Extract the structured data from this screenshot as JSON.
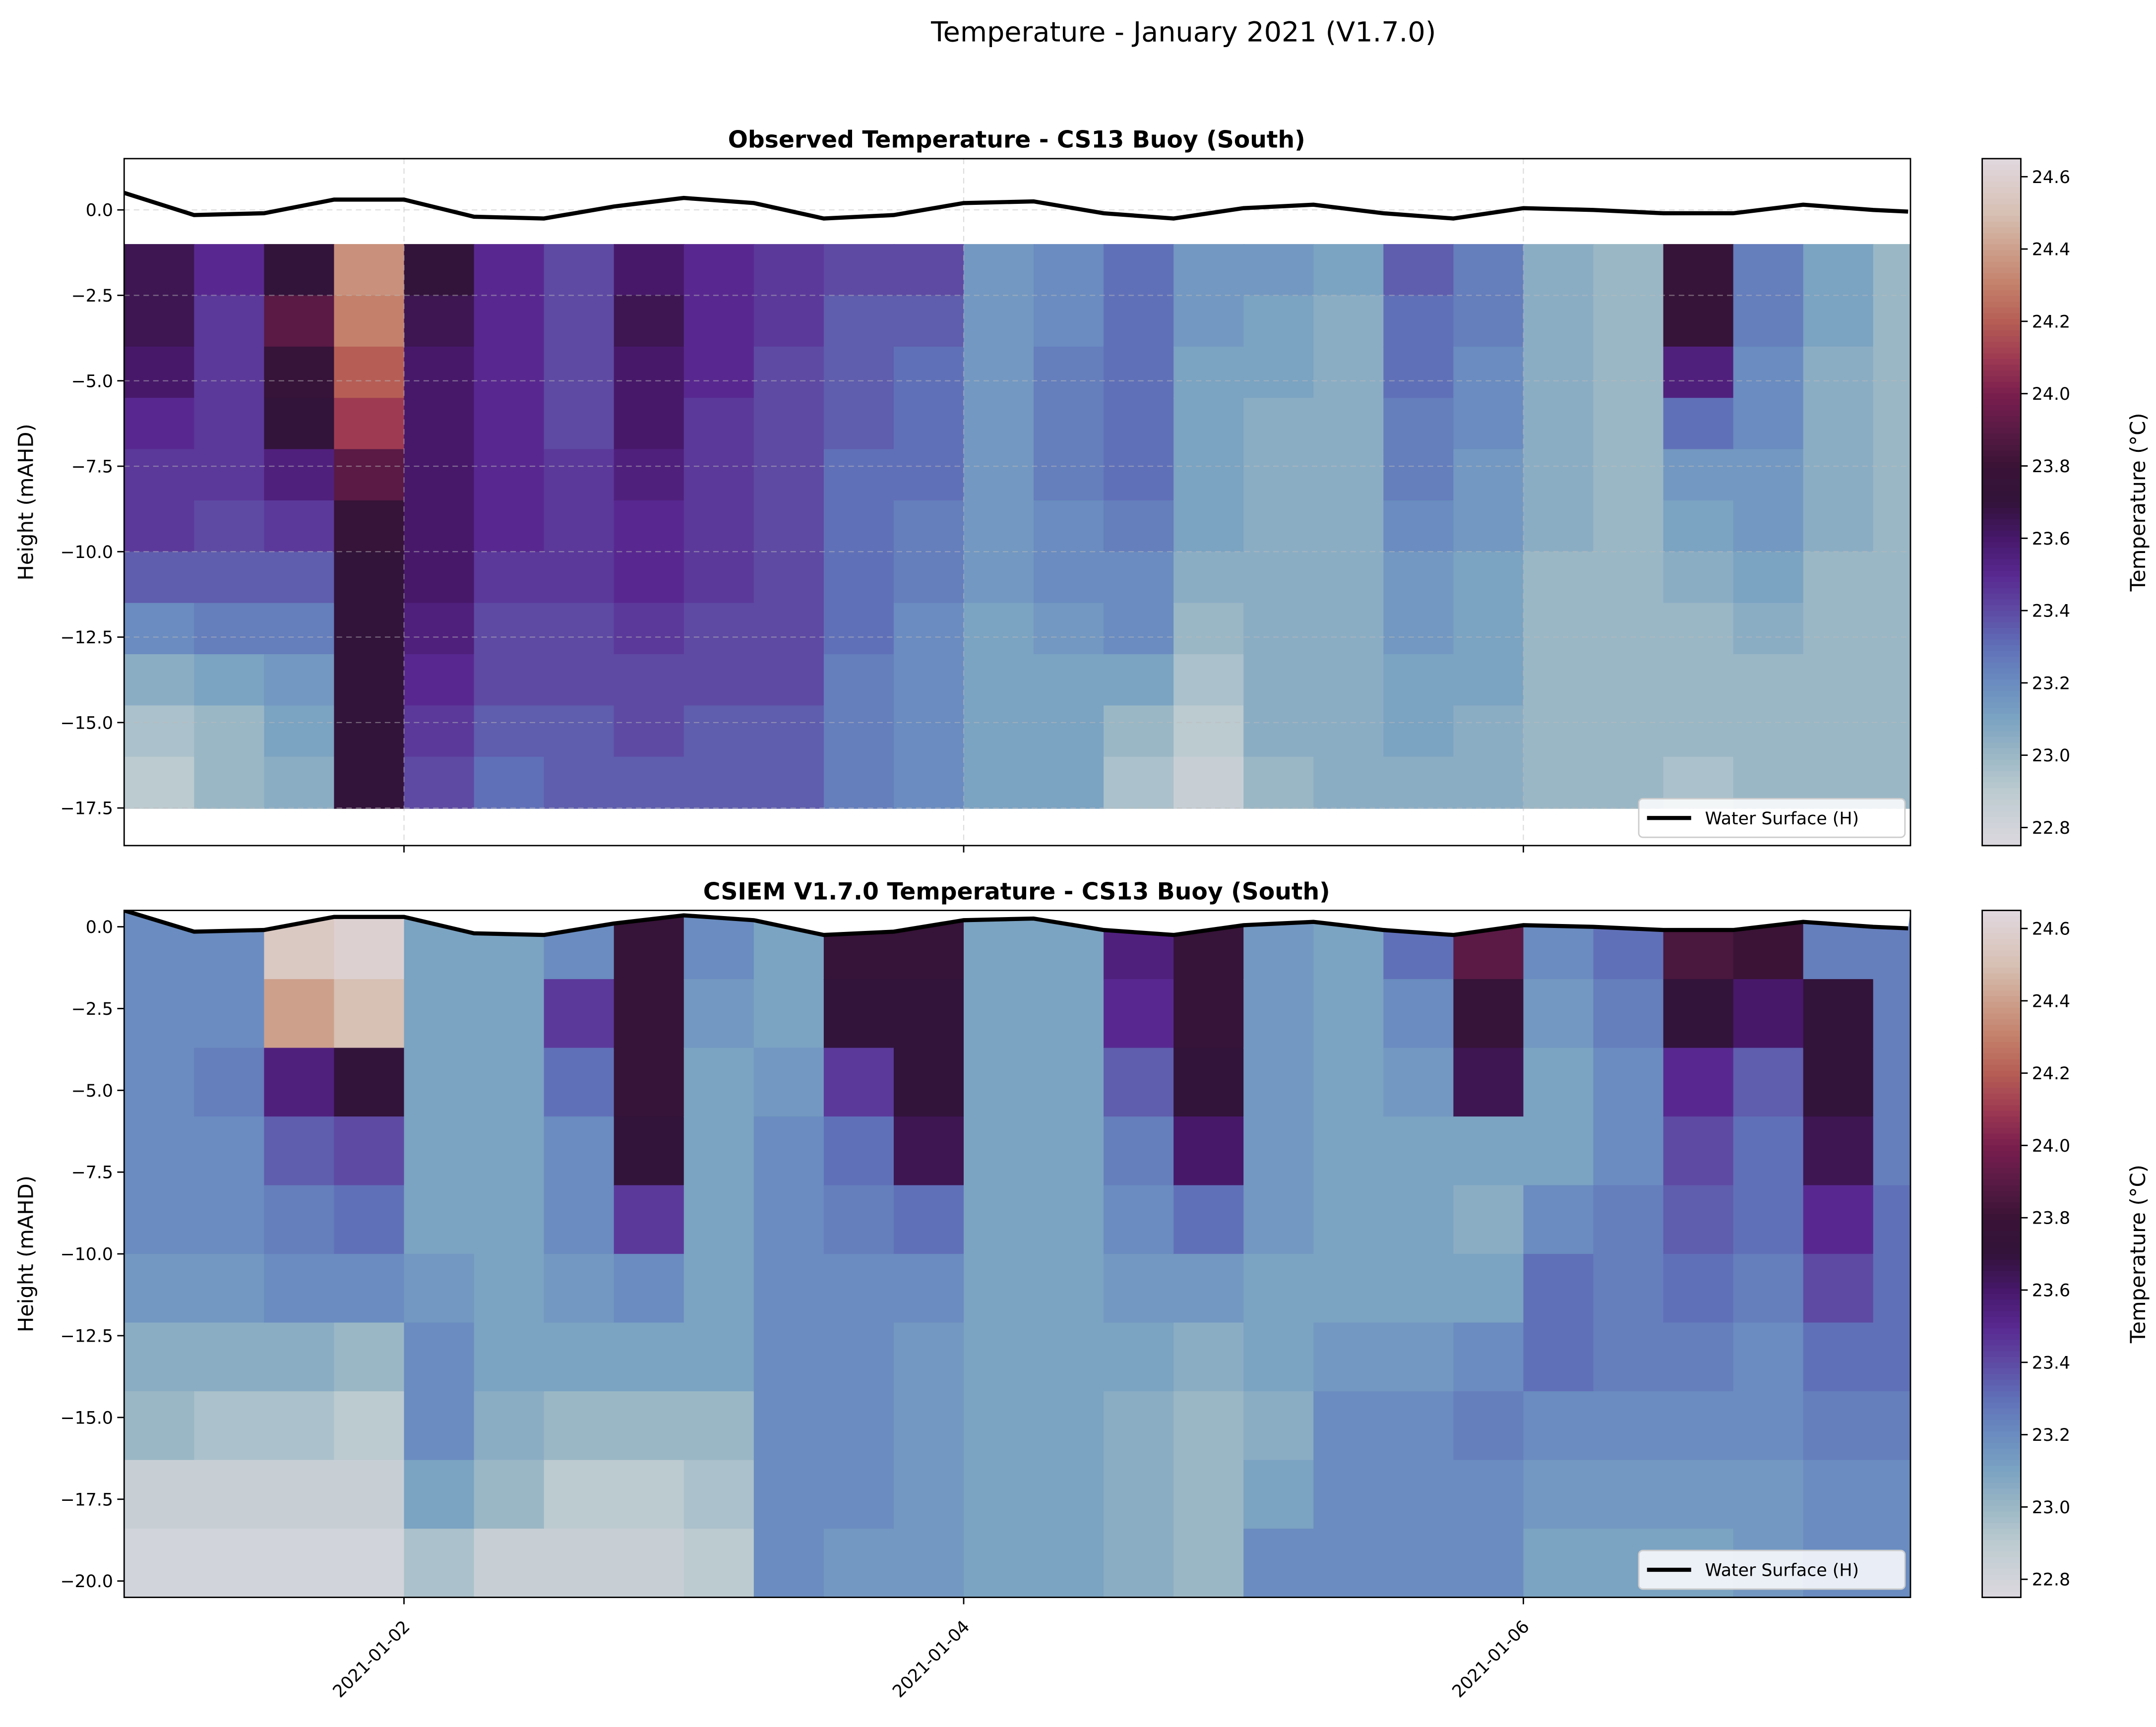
{
  "suptitle": "Temperature - January 2021 (V1.7.0)",
  "colorbar": {
    "label": "Temperature (°C)",
    "range": [
      22.75,
      24.65
    ],
    "ticks": [
      "22.8",
      "23.0",
      "23.2",
      "23.4",
      "23.6",
      "23.8",
      "24.0",
      "24.2",
      "24.4",
      "24.6"
    ],
    "colormap": [
      [
        22.75,
        "#dcd8df"
      ],
      [
        22.9,
        "#bccbd0"
      ],
      [
        23.0,
        "#9ab7c5"
      ],
      [
        23.1,
        "#7ba3c2"
      ],
      [
        23.2,
        "#6a8cc0"
      ],
      [
        23.3,
        "#6070b8"
      ],
      [
        23.4,
        "#5e4aa3"
      ],
      [
        23.5,
        "#582890"
      ],
      [
        23.6,
        "#47186a"
      ],
      [
        23.7,
        "#32133a"
      ],
      [
        23.8,
        "#3a1336"
      ],
      [
        23.9,
        "#5a1a45"
      ],
      [
        24.0,
        "#7a1e4e"
      ],
      [
        24.1,
        "#9e3b52"
      ],
      [
        24.2,
        "#b65e55"
      ],
      [
        24.3,
        "#c4806a"
      ],
      [
        24.4,
        "#cda08c"
      ],
      [
        24.5,
        "#d7c0b4"
      ],
      [
        24.65,
        "#e0d8df"
      ]
    ]
  },
  "chart_data": [
    {
      "type": "heatmap",
      "title": "Observed Temperature - CS13 Buoy (South)",
      "ylabel": "Height (mAHD)",
      "xlabel": "",
      "xlim": [
        "2021-01-01 00:00",
        "2021-01-07 09:12"
      ],
      "ylim": [
        -18.6,
        1.5
      ],
      "yticks": [
        "−17.5",
        "−15.0",
        "−12.5",
        "−10.0",
        "−7.5",
        "−5.0",
        "−2.5",
        "0.0"
      ],
      "xticks": [
        "2021-01-02",
        "2021-01-04",
        "2021-01-06"
      ],
      "grid": true,
      "legend": {
        "label": "Water Surface (H)",
        "placement": "lower right"
      },
      "times": [
        "2021-01-01 00:00",
        "2021-01-01 06:00",
        "2021-01-01 12:00",
        "2021-01-01 18:00",
        "2021-01-02 00:00",
        "2021-01-02 06:00",
        "2021-01-02 12:00",
        "2021-01-02 18:00",
        "2021-01-03 00:00",
        "2021-01-03 06:00",
        "2021-01-03 12:00",
        "2021-01-03 18:00",
        "2021-01-04 00:00",
        "2021-01-04 06:00",
        "2021-01-04 12:00",
        "2021-01-04 18:00",
        "2021-01-05 00:00",
        "2021-01-05 06:00",
        "2021-01-05 12:00",
        "2021-01-05 18:00",
        "2021-01-06 00:00",
        "2021-01-06 06:00",
        "2021-01-06 12:00",
        "2021-01-06 18:00",
        "2021-01-07 00:00",
        "2021-01-07 06:00"
      ],
      "depth_edges": [
        -1,
        -2.5,
        -4,
        -5.5,
        -7,
        -8.5,
        -10,
        -11.5,
        -13,
        -14.5,
        -16,
        -17.5
      ],
      "values": [
        [
          23.65,
          23.65,
          23.6,
          23.5,
          23.45,
          23.45,
          23.35,
          23.2,
          23.05,
          22.95,
          22.9
        ],
        [
          23.5,
          23.45,
          23.45,
          23.45,
          23.45,
          23.4,
          23.35,
          23.25,
          23.1,
          23.0,
          23.0
        ],
        [
          23.7,
          23.9,
          23.75,
          23.7,
          23.55,
          23.45,
          23.35,
          23.25,
          23.15,
          23.1,
          23.05
        ],
        [
          24.35,
          24.3,
          24.2,
          24.1,
          23.9,
          23.75,
          23.7,
          23.7,
          23.7,
          23.7,
          23.7
        ],
        [
          23.7,
          23.65,
          23.6,
          23.6,
          23.6,
          23.6,
          23.6,
          23.55,
          23.5,
          23.45,
          23.4
        ],
        [
          23.5,
          23.5,
          23.5,
          23.5,
          23.5,
          23.5,
          23.45,
          23.4,
          23.4,
          23.35,
          23.3
        ],
        [
          23.4,
          23.4,
          23.4,
          23.4,
          23.45,
          23.45,
          23.45,
          23.4,
          23.4,
          23.35,
          23.35
        ],
        [
          23.6,
          23.65,
          23.6,
          23.6,
          23.55,
          23.5,
          23.5,
          23.45,
          23.4,
          23.4,
          23.35
        ],
        [
          23.5,
          23.5,
          23.5,
          23.45,
          23.45,
          23.45,
          23.45,
          23.4,
          23.4,
          23.35,
          23.35
        ],
        [
          23.45,
          23.45,
          23.4,
          23.4,
          23.4,
          23.4,
          23.4,
          23.4,
          23.4,
          23.35,
          23.35
        ],
        [
          23.4,
          23.35,
          23.35,
          23.35,
          23.3,
          23.3,
          23.3,
          23.3,
          23.25,
          23.25,
          23.25
        ],
        [
          23.4,
          23.35,
          23.3,
          23.3,
          23.3,
          23.25,
          23.25,
          23.2,
          23.2,
          23.2,
          23.2
        ],
        [
          23.15,
          23.15,
          23.15,
          23.15,
          23.15,
          23.15,
          23.15,
          23.1,
          23.1,
          23.1,
          23.1
        ],
        [
          23.2,
          23.2,
          23.25,
          23.25,
          23.25,
          23.2,
          23.2,
          23.15,
          23.1,
          23.1,
          23.1
        ],
        [
          23.3,
          23.3,
          23.3,
          23.3,
          23.3,
          23.25,
          23.2,
          23.2,
          23.1,
          23.0,
          22.95
        ],
        [
          23.15,
          23.15,
          23.1,
          23.1,
          23.1,
          23.1,
          23.05,
          23.0,
          22.95,
          22.9,
          22.85
        ],
        [
          23.15,
          23.1,
          23.1,
          23.05,
          23.05,
          23.05,
          23.05,
          23.05,
          23.05,
          23.05,
          23.0
        ],
        [
          23.1,
          23.05,
          23.05,
          23.05,
          23.05,
          23.05,
          23.05,
          23.05,
          23.05,
          23.05,
          23.05
        ],
        [
          23.35,
          23.3,
          23.3,
          23.25,
          23.25,
          23.2,
          23.15,
          23.15,
          23.1,
          23.1,
          23.05
        ],
        [
          23.25,
          23.25,
          23.2,
          23.2,
          23.15,
          23.15,
          23.1,
          23.1,
          23.1,
          23.05,
          23.05
        ],
        [
          23.05,
          23.05,
          23.05,
          23.05,
          23.05,
          23.05,
          23.0,
          23.0,
          23.0,
          23.0,
          23.0
        ],
        [
          23.0,
          23.0,
          23.0,
          23.0,
          23.0,
          23.0,
          23.0,
          23.0,
          23.0,
          23.0,
          23.0
        ],
        [
          23.75,
          23.75,
          23.55,
          23.3,
          23.15,
          23.1,
          23.05,
          23.0,
          23.0,
          23.0,
          22.95
        ],
        [
          23.25,
          23.25,
          23.2,
          23.2,
          23.15,
          23.15,
          23.1,
          23.05,
          23.0,
          23.0,
          23.0
        ],
        [
          23.1,
          23.1,
          23.05,
          23.05,
          23.05,
          23.05,
          23.0,
          23.0,
          23.0,
          23.0,
          23.0
        ],
        [
          23.0,
          23.0,
          23.0,
          23.0,
          23.0,
          23.0,
          23.0,
          23.0,
          23.0,
          23.0,
          23.0
        ]
      ]
    },
    {
      "type": "heatmap",
      "title": "CSIEM V1.7.0 Temperature - CS13 Buoy (South)",
      "ylabel": "Height (mAHD)",
      "xlabel": "",
      "xlim": [
        "2021-01-01 00:00",
        "2021-01-07 09:12"
      ],
      "ylim": [
        -20.5,
        0.5
      ],
      "yticks": [
        "−20.0",
        "−17.5",
        "−15.0",
        "−12.5",
        "−10.0",
        "−7.5",
        "−5.0",
        "−2.5",
        "0.0"
      ],
      "xticks": [
        "2021-01-02",
        "2021-01-04",
        "2021-01-06"
      ],
      "grid": false,
      "legend": {
        "label": "Water Surface (H)",
        "placement": "lower right"
      },
      "times": [
        "2021-01-01 00:00",
        "2021-01-01 06:00",
        "2021-01-01 12:00",
        "2021-01-01 18:00",
        "2021-01-02 00:00",
        "2021-01-02 06:00",
        "2021-01-02 12:00",
        "2021-01-02 18:00",
        "2021-01-03 00:00",
        "2021-01-03 06:00",
        "2021-01-03 12:00",
        "2021-01-03 18:00",
        "2021-01-04 00:00",
        "2021-01-04 06:00",
        "2021-01-04 12:00",
        "2021-01-04 18:00",
        "2021-01-05 00:00",
        "2021-01-05 06:00",
        "2021-01-05 12:00",
        "2021-01-05 18:00",
        "2021-01-06 00:00",
        "2021-01-06 06:00",
        "2021-01-06 12:00",
        "2021-01-06 18:00",
        "2021-01-07 00:00",
        "2021-01-07 06:00"
      ],
      "depth_edges": [
        0.5,
        -1.6,
        -3.7,
        -5.8,
        -7.9,
        -10,
        -12.1,
        -14.2,
        -16.3,
        -18.4,
        -20.5
      ],
      "values": [
        [
          23.2,
          23.2,
          23.2,
          23.2,
          23.2,
          23.15,
          23.05,
          23.0,
          22.85,
          22.8
        ],
        [
          23.2,
          23.2,
          23.25,
          23.2,
          23.2,
          23.15,
          23.05,
          22.95,
          22.85,
          22.8
        ],
        [
          24.55,
          24.4,
          23.55,
          23.35,
          23.25,
          23.2,
          23.05,
          22.95,
          22.85,
          22.8
        ],
        [
          24.6,
          24.5,
          23.7,
          23.4,
          23.3,
          23.2,
          23.0,
          22.9,
          22.85,
          22.8
        ],
        [
          23.1,
          23.1,
          23.1,
          23.1,
          23.1,
          23.15,
          23.2,
          23.2,
          23.1,
          22.95
        ],
        [
          23.1,
          23.1,
          23.1,
          23.1,
          23.1,
          23.1,
          23.1,
          23.05,
          23.0,
          22.85
        ],
        [
          23.2,
          23.45,
          23.3,
          23.2,
          23.2,
          23.15,
          23.1,
          23.0,
          22.9,
          22.85
        ],
        [
          23.75,
          23.75,
          23.75,
          23.7,
          23.45,
          23.2,
          23.1,
          23.0,
          22.9,
          22.85
        ],
        [
          23.2,
          23.15,
          23.1,
          23.1,
          23.1,
          23.1,
          23.1,
          23.0,
          22.95,
          22.9
        ],
        [
          23.1,
          23.1,
          23.15,
          23.2,
          23.2,
          23.2,
          23.2,
          23.2,
          23.2,
          23.2
        ],
        [
          23.75,
          23.7,
          23.45,
          23.3,
          23.25,
          23.2,
          23.2,
          23.2,
          23.2,
          23.15
        ],
        [
          23.75,
          23.7,
          23.7,
          23.65,
          23.3,
          23.2,
          23.15,
          23.15,
          23.15,
          23.15
        ],
        [
          23.1,
          23.1,
          23.1,
          23.1,
          23.1,
          23.1,
          23.1,
          23.1,
          23.1,
          23.1
        ],
        [
          23.1,
          23.1,
          23.1,
          23.1,
          23.1,
          23.1,
          23.1,
          23.1,
          23.1,
          23.1
        ],
        [
          23.55,
          23.5,
          23.35,
          23.25,
          23.2,
          23.15,
          23.1,
          23.05,
          23.05,
          23.05
        ],
        [
          23.75,
          23.75,
          23.7,
          23.6,
          23.3,
          23.15,
          23.05,
          23.0,
          23.0,
          23.0
        ],
        [
          23.15,
          23.15,
          23.15,
          23.15,
          23.15,
          23.1,
          23.1,
          23.05,
          23.1,
          23.2
        ],
        [
          23.1,
          23.1,
          23.1,
          23.1,
          23.1,
          23.1,
          23.15,
          23.2,
          23.2,
          23.2
        ],
        [
          23.3,
          23.2,
          23.15,
          23.1,
          23.1,
          23.1,
          23.15,
          23.2,
          23.2,
          23.2
        ],
        [
          23.9,
          23.75,
          23.65,
          23.1,
          23.05,
          23.1,
          23.2,
          23.25,
          23.2,
          23.2
        ],
        [
          23.2,
          23.15,
          23.1,
          23.1,
          23.2,
          23.3,
          23.3,
          23.2,
          23.15,
          23.1
        ],
        [
          23.3,
          23.25,
          23.2,
          23.2,
          23.25,
          23.25,
          23.25,
          23.2,
          23.15,
          23.1
        ],
        [
          23.85,
          23.7,
          23.5,
          23.4,
          23.35,
          23.3,
          23.25,
          23.2,
          23.15,
          23.1
        ],
        [
          23.8,
          23.6,
          23.35,
          23.3,
          23.3,
          23.25,
          23.2,
          23.2,
          23.15,
          23.15
        ],
        [
          23.25,
          23.7,
          23.7,
          23.65,
          23.5,
          23.4,
          23.3,
          23.25,
          23.2,
          23.2
        ],
        [
          23.25,
          23.25,
          23.25,
          23.25,
          23.3,
          23.3,
          23.3,
          23.25,
          23.2,
          23.2
        ]
      ]
    }
  ],
  "water_surface": {
    "label": "Water Surface (H)",
    "times": [
      "2021-01-01 00:00",
      "2021-01-01 06:00",
      "2021-01-01 12:00",
      "2021-01-01 18:00",
      "2021-01-02 00:00",
      "2021-01-02 06:00",
      "2021-01-02 12:00",
      "2021-01-02 18:00",
      "2021-01-03 00:00",
      "2021-01-03 06:00",
      "2021-01-03 12:00",
      "2021-01-03 18:00",
      "2021-01-04 00:00",
      "2021-01-04 06:00",
      "2021-01-04 12:00",
      "2021-01-04 18:00",
      "2021-01-05 00:00",
      "2021-01-05 06:00",
      "2021-01-05 12:00",
      "2021-01-05 18:00",
      "2021-01-06 00:00",
      "2021-01-06 06:00",
      "2021-01-06 12:00",
      "2021-01-06 18:00",
      "2021-01-07 00:00",
      "2021-01-07 06:00",
      "2021-01-07 09:00"
    ],
    "values": [
      0.5,
      -0.15,
      -0.1,
      0.3,
      0.3,
      -0.2,
      -0.25,
      0.1,
      0.35,
      0.2,
      -0.25,
      -0.15,
      0.2,
      0.25,
      -0.1,
      -0.25,
      0.05,
      0.15,
      -0.1,
      -0.25,
      0.05,
      0.0,
      -0.1,
      -0.1,
      0.15,
      0.0,
      -0.05
    ]
  }
}
